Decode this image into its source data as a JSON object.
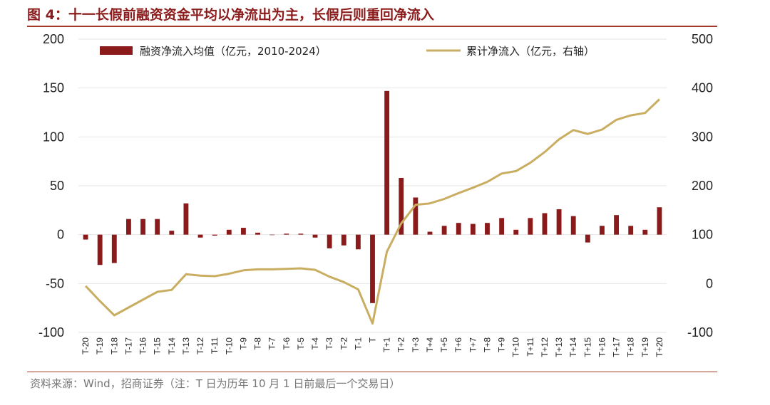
{
  "figure": {
    "title": "图 4：十一长假前融资资金平均以净流出为主，长假后则重回净流入",
    "source": "资料来源：Wind，招商证券（注：T 日为历年 10 月 1 日前最后一个交易日）"
  },
  "chart_data": {
    "type": "bar+line",
    "categories": [
      "T-20",
      "T-19",
      "T-18",
      "T-17",
      "T-16",
      "T-15",
      "T-14",
      "T-13",
      "T-12",
      "T-11",
      "T-10",
      "T-9",
      "T-8",
      "T-7",
      "T-6",
      "T-5",
      "T-4",
      "T-3",
      "T-2",
      "T-1",
      "T",
      "T+1",
      "T+2",
      "T+3",
      "T+4",
      "T+5",
      "T+6",
      "T+7",
      "T+8",
      "T+9",
      "T+10",
      "T+11",
      "T+12",
      "T+13",
      "T+14",
      "T+15",
      "T+16",
      "T+17",
      "T+18",
      "T+19",
      "T+20"
    ],
    "series": [
      {
        "name": "融资净流入均值（亿元，2010-2024）",
        "type": "bar",
        "axis": "left",
        "color": "#8b1a1a",
        "values": [
          -5,
          -31,
          -29,
          16,
          16,
          16,
          4,
          32,
          -3,
          -1,
          5,
          7,
          2,
          0,
          1,
          1,
          -3,
          -14,
          -11,
          -15,
          -70,
          147,
          58,
          38,
          3,
          9,
          12,
          11,
          12,
          17,
          5,
          17,
          22,
          26,
          19,
          -8,
          9,
          20,
          9,
          5,
          28
        ]
      },
      {
        "name": "累计净流入（亿元，右轴）",
        "type": "line",
        "axis": "right",
        "color": "#c9ad61",
        "values": [
          -5,
          -36,
          -65,
          -49,
          -33,
          -17,
          -13,
          19,
          16,
          15,
          20,
          27,
          29,
          29,
          30,
          31,
          28,
          14,
          3,
          -12,
          -82,
          65,
          123,
          161,
          164,
          173,
          185,
          196,
          208,
          225,
          230,
          247,
          269,
          295,
          314,
          306,
          315,
          335,
          344,
          349,
          377
        ]
      }
    ],
    "y_left": {
      "min": -100,
      "max": 200,
      "ticks": [
        -100,
        -50,
        0,
        50,
        100,
        150,
        200
      ]
    },
    "y_right": {
      "min": -100,
      "max": 500,
      "ticks": [
        -100,
        0,
        100,
        200,
        300,
        400,
        500
      ]
    },
    "legend_position": "top",
    "grid": "horizontal"
  }
}
